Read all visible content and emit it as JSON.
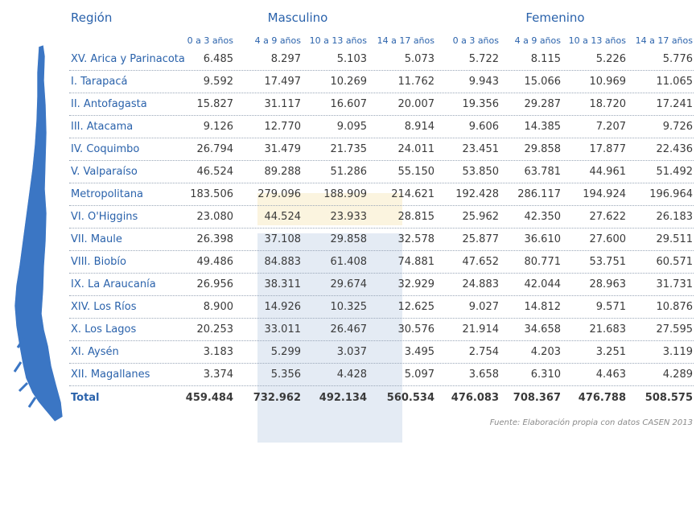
{
  "header": {
    "region": "Región",
    "male": "Masculino",
    "female": "Femenino"
  },
  "age_groups": [
    "0 a 3 años",
    "4 a 9 años",
    "10 a 13 años",
    "14 a 17 años"
  ],
  "rows": [
    {
      "region": "XV. Arica y Parinacota",
      "values": [
        "6.485",
        "8.297",
        "5.103",
        "5.073",
        "5.722",
        "8.115",
        "5.226",
        "5.776"
      ]
    },
    {
      "region": "I. Tarapacá",
      "values": [
        "9.592",
        "17.497",
        "10.269",
        "11.762",
        "9.943",
        "15.066",
        "10.969",
        "11.065"
      ]
    },
    {
      "region": "II. Antofagasta",
      "values": [
        "15.827",
        "31.117",
        "16.607",
        "20.007",
        "19.356",
        "29.287",
        "18.720",
        "17.241"
      ]
    },
    {
      "region": "III. Atacama",
      "values": [
        "9.126",
        "12.770",
        "9.095",
        "8.914",
        "9.606",
        "14.385",
        "7.207",
        "9.726"
      ]
    },
    {
      "region": "IV. Coquimbo",
      "values": [
        "26.794",
        "31.479",
        "21.735",
        "24.011",
        "23.451",
        "29.858",
        "17.877",
        "22.436"
      ]
    },
    {
      "region": "V. Valparaíso",
      "values": [
        "46.524",
        "89.288",
        "51.286",
        "55.150",
        "53.850",
        "63.781",
        "44.961",
        "51.492"
      ]
    },
    {
      "region": "Metropolitana",
      "values": [
        "183.506",
        "279.096",
        "188.909",
        "214.621",
        "192.428",
        "286.117",
        "194.924",
        "196.964"
      ]
    },
    {
      "region": "VI. O'Higgins",
      "values": [
        "23.080",
        "44.524",
        "23.933",
        "28.815",
        "25.962",
        "42.350",
        "27.622",
        "26.183"
      ]
    },
    {
      "region": "VII. Maule",
      "values": [
        "26.398",
        "37.108",
        "29.858",
        "32.578",
        "25.877",
        "36.610",
        "27.600",
        "29.511"
      ]
    },
    {
      "region": "VIII. Biobío",
      "values": [
        "49.486",
        "84.883",
        "61.408",
        "74.881",
        "47.652",
        "80.771",
        "53.751",
        "60.571"
      ]
    },
    {
      "region": "IX. La Araucanía",
      "values": [
        "26.956",
        "38.311",
        "29.674",
        "32.929",
        "24.883",
        "42.044",
        "28.963",
        "31.731"
      ]
    },
    {
      "region": "XIV. Los Ríos",
      "values": [
        "8.900",
        "14.926",
        "10.325",
        "12.625",
        "9.027",
        "14.812",
        "9.571",
        "10.876"
      ]
    },
    {
      "region": "X. Los Lagos",
      "values": [
        "20.253",
        "33.011",
        "26.467",
        "30.576",
        "21.914",
        "34.658",
        "21.683",
        "27.595"
      ]
    },
    {
      "region": "XI. Aysén",
      "values": [
        "3.183",
        "5.299",
        "3.037",
        "3.495",
        "2.754",
        "4.203",
        "3.251",
        "3.119"
      ]
    },
    {
      "region": "XII. Magallanes",
      "values": [
        "3.374",
        "5.356",
        "4.428",
        "5.097",
        "3.658",
        "6.310",
        "4.463",
        "4.289"
      ]
    }
  ],
  "total": {
    "label": "Total",
    "values": [
      "459.484",
      "732.962",
      "492.134",
      "560.534",
      "476.083",
      "708.367",
      "476.788",
      "508.575"
    ]
  },
  "source": "Fuente: Elaboración propia con datos CASEN 2013"
}
